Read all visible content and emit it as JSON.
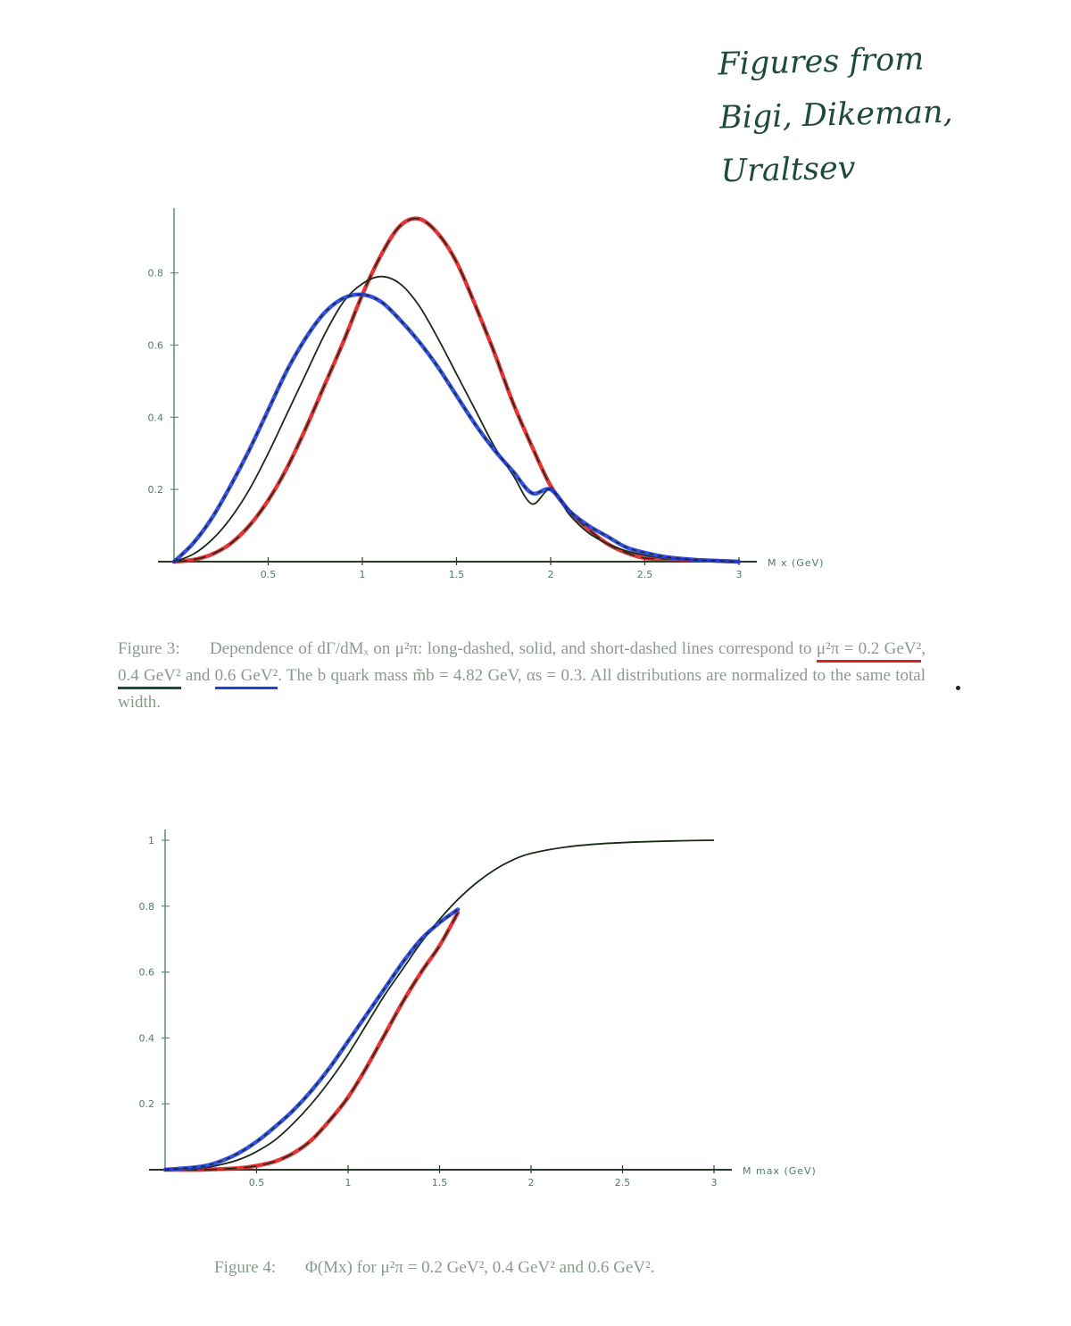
{
  "note": {
    "lines": [
      "Figures from",
      "Bigi, Dikeman,",
      "Uraltsev"
    ]
  },
  "figure3": {
    "caption": {
      "label": "Figure 3:",
      "part1": "Dependence of dΓ/dMₓ on μ²π: long-dashed, solid, and short-dashed lines correspond to",
      "u1": "μ²π = 0.2 GeV²",
      "sep1": ",",
      "u2": "0.4 GeV²",
      "sep2": " and",
      "u3": "0.6 GeV²",
      "part2": ". The b quark mass m̃b = 4.82 GeV, αs = 0.3. All distributions are normalized to the same total width."
    },
    "chart_data": {
      "type": "line",
      "xlabel": "M x (GeV)",
      "xlim": [
        0,
        3
      ],
      "ylim": [
        0,
        0.95
      ],
      "xticks": [
        "0.5",
        "1",
        "1.5",
        "2",
        "2.5",
        "3"
      ],
      "yticks": [
        "0.2",
        "0.4",
        "0.6",
        "0.8"
      ],
      "series": [
        {
          "color": "#e02020",
          "dash": "long",
          "x": [
            0,
            0.1,
            0.2,
            0.3,
            0.4,
            0.5,
            0.6,
            0.7,
            0.8,
            0.9,
            1.0,
            1.1,
            1.2,
            1.3,
            1.4,
            1.5,
            1.6,
            1.7,
            1.8,
            1.9,
            2.0,
            2.1,
            2.2,
            2.3,
            2.4,
            2.5,
            2.6,
            2.7,
            2.8,
            2.9,
            3.0
          ],
          "y": [
            0,
            0.005,
            0.02,
            0.05,
            0.1,
            0.17,
            0.26,
            0.37,
            0.49,
            0.61,
            0.74,
            0.85,
            0.93,
            0.95,
            0.91,
            0.83,
            0.71,
            0.58,
            0.44,
            0.32,
            0.21,
            0.14,
            0.09,
            0.05,
            0.025,
            0.01,
            0.008,
            0.006,
            0.004,
            0.002,
            0.0
          ]
        },
        {
          "color": "#1a2a1a",
          "dash": "solid",
          "x": [
            0,
            0.1,
            0.2,
            0.3,
            0.4,
            0.5,
            0.6,
            0.7,
            0.8,
            0.9,
            1.0,
            1.1,
            1.2,
            1.3,
            1.4,
            1.5,
            1.6,
            1.7,
            1.8,
            1.9,
            2.0,
            2.1,
            2.2,
            2.3,
            2.4,
            2.5,
            2.6,
            2.7,
            2.8,
            2.9,
            3.0
          ],
          "y": [
            0,
            0.02,
            0.06,
            0.12,
            0.2,
            0.3,
            0.41,
            0.52,
            0.63,
            0.72,
            0.77,
            0.79,
            0.77,
            0.71,
            0.62,
            0.52,
            0.42,
            0.32,
            0.24,
            0.16,
            0.2,
            0.13,
            0.08,
            0.05,
            0.03,
            0.018,
            0.01,
            0.006,
            0.003,
            0.001,
            0.0
          ]
        },
        {
          "color": "#2040e0",
          "dash": "short",
          "x": [
            0,
            0.1,
            0.2,
            0.3,
            0.4,
            0.5,
            0.6,
            0.7,
            0.8,
            0.9,
            1.0,
            1.1,
            1.2,
            1.3,
            1.4,
            1.5,
            1.6,
            1.7,
            1.8,
            1.9,
            2.0,
            2.1,
            2.2,
            2.3,
            2.4,
            2.5,
            2.6,
            2.7,
            2.8,
            2.9,
            3.0
          ],
          "y": [
            0,
            0.05,
            0.12,
            0.21,
            0.31,
            0.42,
            0.53,
            0.62,
            0.69,
            0.73,
            0.74,
            0.72,
            0.67,
            0.61,
            0.54,
            0.46,
            0.38,
            0.31,
            0.25,
            0.19,
            0.2,
            0.14,
            0.1,
            0.07,
            0.04,
            0.025,
            0.014,
            0.008,
            0.004,
            0.002,
            0.0
          ]
        }
      ]
    }
  },
  "figure4": {
    "caption": {
      "label": "Figure 4:",
      "text": "Φ(Mx) for μ²π = 0.2 GeV², 0.4 GeV² and 0.6 GeV²."
    },
    "chart_data": {
      "type": "line",
      "xlabel": "M max (GeV)",
      "xlim": [
        0,
        3
      ],
      "ylim": [
        0,
        1
      ],
      "xticks": [
        "0.5",
        "1",
        "1.5",
        "2",
        "2.5",
        "3"
      ],
      "yticks": [
        "0.2",
        "0.4",
        "0.6",
        "0.8",
        "1"
      ],
      "series": [
        {
          "color": "#e02020",
          "dash": "long",
          "x": [
            0,
            0.2,
            0.4,
            0.5,
            0.6,
            0.7,
            0.8,
            0.9,
            1.0,
            1.1,
            1.2,
            1.3,
            1.4,
            1.5,
            1.6
          ],
          "y": [
            0,
            0.0,
            0.005,
            0.012,
            0.025,
            0.05,
            0.09,
            0.15,
            0.22,
            0.31,
            0.41,
            0.51,
            0.6,
            0.68,
            0.78
          ]
        },
        {
          "color": "#1a2a1a",
          "dash": "solid",
          "x": [
            0,
            0.2,
            0.3,
            0.4,
            0.5,
            0.6,
            0.7,
            0.8,
            0.9,
            1.0,
            1.1,
            1.2,
            1.3,
            1.4,
            1.5,
            1.6,
            1.7,
            1.8,
            1.9,
            2.0,
            2.2,
            2.4,
            2.6,
            2.8,
            3.0
          ],
          "y": [
            0,
            0.005,
            0.015,
            0.03,
            0.055,
            0.09,
            0.14,
            0.2,
            0.27,
            0.35,
            0.44,
            0.53,
            0.61,
            0.69,
            0.76,
            0.82,
            0.87,
            0.91,
            0.94,
            0.96,
            0.98,
            0.99,
            0.995,
            0.998,
            1.0
          ]
        },
        {
          "color": "#2040e0",
          "dash": "short",
          "x": [
            0,
            0.2,
            0.3,
            0.4,
            0.5,
            0.6,
            0.7,
            0.8,
            0.9,
            1.0,
            1.1,
            1.2,
            1.3,
            1.4,
            1.5,
            1.6
          ],
          "y": [
            0,
            0.01,
            0.025,
            0.05,
            0.085,
            0.13,
            0.18,
            0.24,
            0.31,
            0.39,
            0.47,
            0.55,
            0.63,
            0.7,
            0.75,
            0.79
          ]
        }
      ]
    }
  }
}
